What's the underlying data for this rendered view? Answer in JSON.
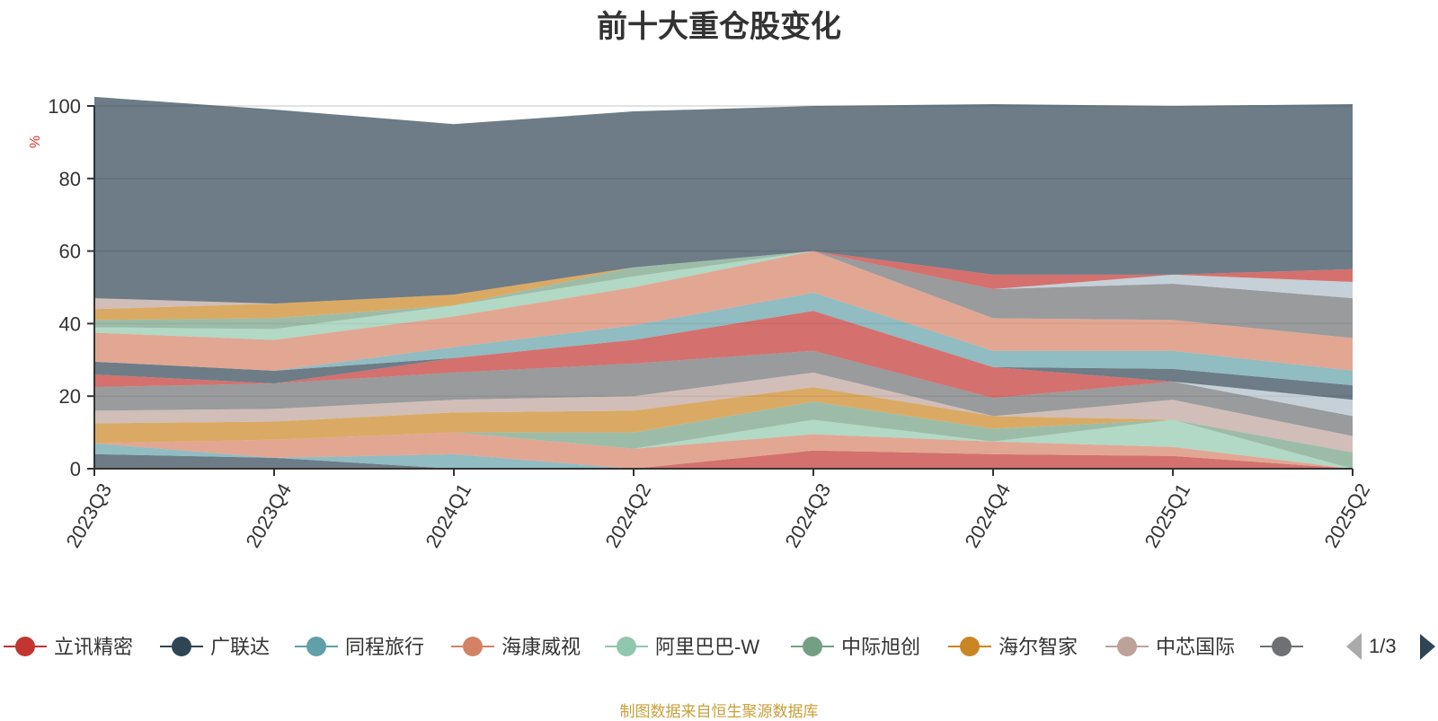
{
  "title": "前十大重仓股变化",
  "source_note": "制图数据来自恒生聚源数据库",
  "legend_page": "1/3",
  "colors": {
    "background": "#ffffff",
    "axis": "#333333",
    "grid": "#d9d9d9",
    "unit_label": "#e03030",
    "source_note": "#c8a03a",
    "pager_inactive": "#aaaaaa",
    "pager_active": "#2f4554"
  },
  "chart_data": {
    "type": "area",
    "stacked": true,
    "ylabel": "%",
    "ylim": [
      0,
      100
    ],
    "yticks": [
      0,
      20,
      40,
      60,
      80,
      100
    ],
    "grid": true,
    "legend_position": "bottom",
    "categories": [
      "2023Q3",
      "2023Q4",
      "2024Q1",
      "2024Q2",
      "2024Q3",
      "2024Q4",
      "2025Q1",
      "2025Q2"
    ],
    "layers": [
      {
        "color": "#c23531",
        "values": [
          0,
          0,
          0,
          0,
          5,
          4,
          3.5,
          0
        ]
      },
      {
        "color": "#2f4554",
        "values": [
          4,
          3,
          0,
          0,
          0,
          0,
          0,
          0
        ]
      },
      {
        "color": "#61a0a8",
        "values": [
          3,
          0,
          4,
          0,
          0,
          0,
          0,
          0
        ]
      },
      {
        "color": "#d48265",
        "values": [
          0,
          5,
          6,
          5.5,
          4.5,
          3.5,
          2.5,
          0
        ]
      },
      {
        "color": "#91c7ae",
        "values": [
          0,
          0,
          0,
          0,
          4,
          0,
          7.5,
          0
        ]
      },
      {
        "color": "#749f83",
        "values": [
          0,
          0,
          0,
          4.5,
          5,
          3.5,
          0,
          4.5
        ]
      },
      {
        "color": "#ca8622",
        "values": [
          5.5,
          5,
          5.5,
          6,
          4,
          3.5,
          0,
          0
        ]
      },
      {
        "color": "#bda29a",
        "values": [
          3.5,
          3.5,
          3.5,
          4,
          4,
          0,
          5.5,
          4.5
        ]
      },
      {
        "color": "#6e7074",
        "values": [
          6.5,
          7,
          7.5,
          9,
          6,
          5,
          5,
          5.5
        ]
      },
      {
        "color": "#aebcc7",
        "values": [
          0,
          0,
          0,
          0,
          0,
          0,
          0,
          4.5
        ]
      },
      {
        "color": "#c23531",
        "values": [
          3.5,
          0,
          4,
          6.5,
          11,
          8.5,
          0,
          0
        ]
      },
      {
        "color": "#2f4554",
        "values": [
          3.5,
          3.5,
          0,
          0,
          0,
          0,
          3.5,
          4
        ]
      },
      {
        "color": "#61a0a8",
        "values": [
          0,
          0,
          3,
          4,
          5,
          4.5,
          5,
          4
        ]
      },
      {
        "color": "#d48265",
        "values": [
          8,
          8.5,
          8.5,
          10.5,
          11.5,
          9,
          8.5,
          9
        ]
      },
      {
        "color": "#91c7ae",
        "values": [
          1.5,
          3,
          3,
          3,
          0,
          0,
          0,
          0
        ]
      },
      {
        "color": "#749f83",
        "values": [
          2,
          3,
          0,
          2.5,
          0,
          0,
          0,
          0
        ]
      },
      {
        "color": "#ca8622",
        "values": [
          3,
          4,
          3,
          0,
          0,
          0,
          0,
          0
        ]
      },
      {
        "color": "#bda29a",
        "values": [
          3,
          0,
          0,
          0,
          0,
          0,
          0,
          0
        ]
      },
      {
        "color": "#6e7074",
        "values": [
          0,
          0,
          0,
          0,
          0,
          8,
          10,
          11
        ]
      },
      {
        "color": "#aebcc7",
        "values": [
          0,
          0,
          0,
          0,
          0,
          0,
          2.5,
          4.5
        ]
      },
      {
        "color": "#c23531",
        "values": [
          0,
          0,
          0,
          0,
          0,
          4,
          0,
          3.5
        ]
      },
      {
        "color": "#2f4554",
        "values": [
          55.5,
          53.5,
          47,
          43,
          40,
          47,
          46.5,
          45.5
        ]
      }
    ],
    "legend": [
      {
        "name": "立讯精密",
        "color": "#c23531"
      },
      {
        "name": "广联达",
        "color": "#2f4554"
      },
      {
        "name": "同程旅行",
        "color": "#61a0a8"
      },
      {
        "name": "海康威视",
        "color": "#d48265"
      },
      {
        "name": "阿里巴巴-W",
        "color": "#91c7ae"
      },
      {
        "name": "中际旭创",
        "color": "#749f83"
      },
      {
        "name": "海尔智家",
        "color": "#ca8622"
      },
      {
        "name": "中芯国际",
        "color": "#bda29a"
      },
      {
        "name": "",
        "color": "#6e7074"
      }
    ]
  }
}
